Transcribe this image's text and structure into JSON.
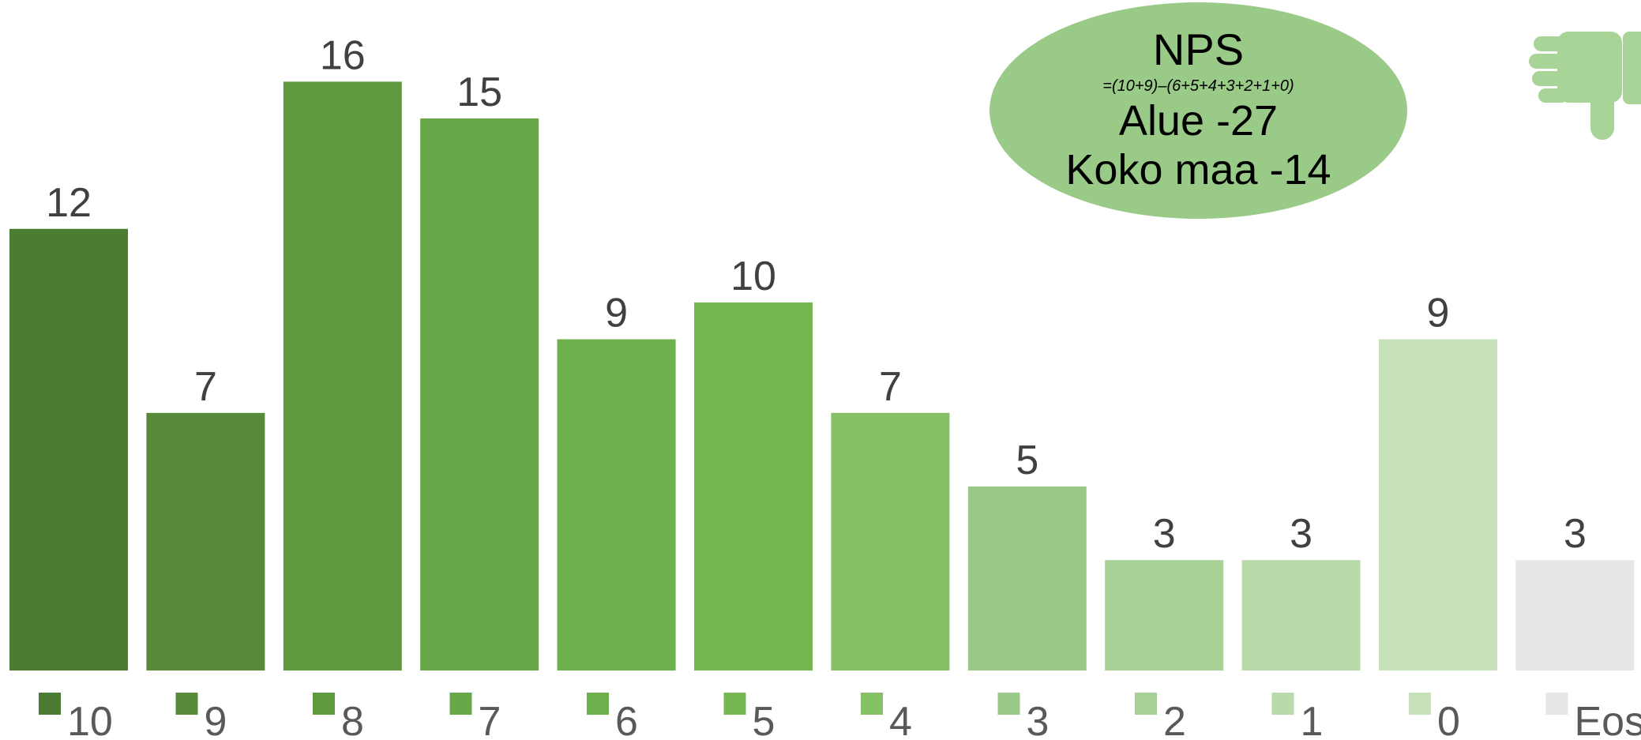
{
  "chart_data": {
    "type": "bar",
    "categories": [
      "10",
      "9",
      "8",
      "7",
      "6",
      "5",
      "4",
      "3",
      "2",
      "1",
      "0",
      "Eos"
    ],
    "values": [
      12,
      7,
      16,
      15,
      9,
      10,
      7,
      5,
      3,
      3,
      9,
      3
    ],
    "colors": [
      "#4a7c32",
      "#578b39",
      "#609a40",
      "#68a748",
      "#6eb04c",
      "#77b752",
      "#85c067",
      "#9aca87",
      "#a7d196",
      "#b9daa9",
      "#c7e2bb",
      "#e6e6e6"
    ],
    "legend": [
      "10",
      "9",
      "8",
      "7",
      "6",
      "5",
      "4",
      "3",
      "2",
      "1",
      "0",
      "Eos"
    ],
    "legend_position": "bottom",
    "title": "",
    "xlabel": "",
    "ylabel": "",
    "ylim": [
      0,
      16
    ],
    "grid": false,
    "show_value_labels": true,
    "value_label_color": "#404040",
    "legend_text_color": "#595959"
  },
  "nps_callout": {
    "title": "NPS",
    "formula": "=(10+9)–(6+5+4+3+2+1+0)",
    "area_line": "Alue -27",
    "country_line": "Koko maa -14",
    "fill_color": "#9aca87"
  },
  "thumb_icon": {
    "name": "thumbs-down-icon",
    "color": "#a9d497"
  }
}
